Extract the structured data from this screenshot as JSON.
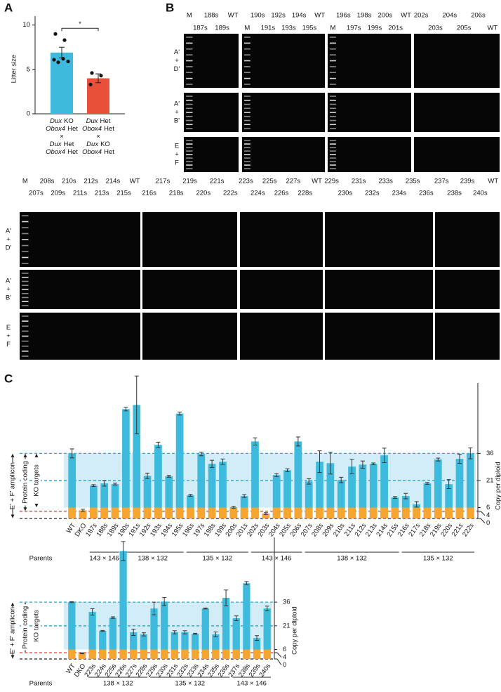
{
  "panel_labels": [
    "A",
    "B",
    "C"
  ],
  "chart_data": [
    {
      "type": "bar",
      "ylabel": "Litter size",
      "categories": [
        [
          [
            "Dux",
            "KO"
          ],
          [
            "Obox4",
            "Het"
          ],
          [
            "×"
          ],
          [
            "Dux",
            "Het"
          ],
          [
            "Obox4",
            "Het"
          ]
        ],
        [
          [
            "Dux",
            "Het"
          ],
          [
            "Obox4",
            "Het"
          ],
          [
            "×"
          ],
          [
            "Dux",
            "KO"
          ],
          [
            "Obox4",
            "Het"
          ]
        ]
      ],
      "values": [
        6.9,
        4.0
      ],
      "errors": [
        0.6,
        0.5
      ],
      "points": [
        [
          9.0,
          8.3,
          6.1,
          5.8,
          6.2,
          5.9
        ],
        [
          4.6,
          4.3,
          3.3
        ]
      ],
      "colors": [
        "#3ebbdc",
        "#e8503a"
      ],
      "ylim": [
        0,
        11
      ],
      "yticks": [
        0,
        5,
        10
      ],
      "significance": "*"
    },
    {
      "type": "bar",
      "ylabel": "Copy per diploid",
      "y_axis_side": "right",
      "annotations": [
        "E' + F' amplicon",
        "Protein coding",
        "KO targets"
      ],
      "parents_label": "Parents",
      "color": "#3ebbdc",
      "controls": {
        "categories": [
          "WT",
          "DKO"
        ],
        "values": [
          36,
          4.5
        ],
        "errors": [
          2.5,
          0.6
        ]
      },
      "groups": [
        {
          "parents": "143 × 146",
          "categories": [
            "187s",
            "188s",
            "189s"
          ],
          "values": [
            18.2,
            19.4,
            19.0
          ],
          "errors": [
            0.5,
            1.5,
            0.5
          ]
        },
        {
          "parents": "138 × 132",
          "categories": [
            "190s",
            "191s",
            "192s",
            "193s",
            "194s",
            "195s"
          ],
          "values": [
            60.5,
            62.8,
            23.6,
            40.7,
            23.3,
            58.0
          ],
          "errors": [
            1.0,
            16.0,
            1.5,
            1.5,
            0.5,
            0.8
          ]
        },
        {
          "parents": "135 × 132",
          "categories": [
            "196s",
            "197s",
            "198s",
            "199s",
            "200s",
            "201s"
          ],
          "values": [
            12.8,
            35.7,
            30.2,
            31.4,
            6.2,
            12.4
          ],
          "errors": [
            0.5,
            1.0,
            2.0,
            1.5,
            0.5,
            0.8
          ]
        },
        {
          "parents": "143 × 146",
          "categories": [
            "202s",
            "203s",
            "204s",
            "205s",
            "206s"
          ],
          "values": [
            42.6,
            2.7,
            24.0,
            26.7,
            42.6
          ],
          "errors": [
            2.0,
            0.5,
            0.8,
            0.8,
            2.5
          ]
        },
        {
          "parents": "138 × 132",
          "categories": [
            "207s",
            "208s",
            "209s",
            "210s",
            "211s",
            "212s",
            "213s",
            "214s",
            "215s"
          ],
          "values": [
            20.5,
            31.4,
            30.6,
            21.3,
            28.7,
            29.8,
            30.2,
            34.9,
            11.6
          ],
          "errors": [
            1.5,
            6.0,
            6.0,
            1.5,
            4.0,
            2.0,
            0.5,
            4.0,
            0.5
          ]
        },
        {
          "parents": "135 × 132",
          "categories": [
            "216s",
            "217s",
            "218s",
            "219s",
            "220s",
            "221s",
            "222s"
          ],
          "values": [
            12.4,
            7.8,
            19.4,
            32.6,
            19.0,
            33.0,
            36.0
          ],
          "errors": [
            1.5,
            1.5,
            0.5,
            0.8,
            2.5,
            2.5,
            3.0
          ]
        }
      ],
      "ylim": [
        0,
        75
      ],
      "yticks": [
        0,
        4,
        6,
        21,
        36
      ],
      "orange_band": {
        "range": [
          0,
          6
        ],
        "color": "#f7a531"
      },
      "shaded_band": {
        "range": [
          6,
          36
        ],
        "color": "#d3edf8"
      },
      "dashed_lines": [
        {
          "value": 36,
          "color": "#27a6d4"
        },
        {
          "value": 21,
          "color": "#27a6d4"
        },
        {
          "value": 4,
          "color": "#e0443a"
        },
        {
          "value": 0,
          "color": "#222222"
        }
      ]
    },
    {
      "type": "bar",
      "ylabel": "Copy per diploid",
      "y_axis_side": "right",
      "annotations": [
        "E' + F' amplicon",
        "Protein coding",
        "KO targets"
      ],
      "parents_label": "Parents",
      "color": "#3ebbdc",
      "controls": {
        "categories": [
          "WT",
          "DKO"
        ],
        "values": [
          36,
          3.6
        ],
        "errors": [
          0.3,
          0.3
        ]
      },
      "groups": [
        {
          "parents": "138 × 132",
          "categories": [
            "223s",
            "224s",
            "225s",
            "226s",
            "227s",
            "228s"
          ],
          "values": [
            29.8,
            17.8,
            26.2,
            68.4,
            16.9,
            15.6
          ],
          "errors": [
            2.0,
            0.3,
            0.5,
            6.0,
            2.0,
            1.0
          ]
        },
        {
          "parents": "135 × 132",
          "categories": [
            "229s",
            "230s",
            "231s",
            "232s",
            "233s",
            "234s",
            "235s",
            "236s"
          ],
          "values": [
            32.0,
            36.4,
            16.9,
            16.9,
            16.0,
            32.0,
            15.6,
            38.7
          ],
          "errors": [
            4.0,
            2.5,
            1.0,
            1.0,
            0.3,
            0.3,
            1.5,
            5.0
          ]
        },
        {
          "parents": "143 × 146",
          "categories": [
            "237s",
            "238s",
            "239s",
            "240s"
          ],
          "values": [
            25.8,
            48.0,
            13.3,
            32.0
          ],
          "errors": [
            1.5,
            1.0,
            1.5,
            1.5
          ]
        }
      ],
      "ylim": [
        0,
        77
      ],
      "yticks": [
        0,
        4,
        6,
        21,
        36
      ],
      "orange_band": {
        "range": [
          0,
          6
        ],
        "color": "#f7a531"
      },
      "shaded_band": {
        "range": [
          6,
          36
        ],
        "color": "#d3edf8"
      },
      "dashed_lines": [
        {
          "value": 36,
          "color": "#27a6d4"
        },
        {
          "value": 21,
          "color": "#27a6d4"
        },
        {
          "value": 4,
          "color": "#e0443a"
        },
        {
          "value": 0,
          "color": "#222222"
        }
      ]
    }
  ],
  "gels": {
    "top": {
      "row_labels": [
        [
          "A'",
          "+",
          "D'"
        ],
        [
          "A'",
          "+",
          "B'"
        ],
        [
          "E",
          "+",
          "F"
        ]
      ],
      "gels": [
        {
          "lanes": [
            "M",
            "187s",
            "188s",
            "189s",
            "WT"
          ],
          "first_row": "top"
        },
        {
          "lanes": [
            "M",
            "190s",
            "191s",
            "192s",
            "193s",
            "194s",
            "195s",
            "WT"
          ],
          "first_row": "bottom"
        },
        {
          "lanes": [
            "M",
            "196s",
            "197s",
            "198s",
            "199s",
            "200s",
            "201s",
            "WT"
          ],
          "first_row": "bottom"
        },
        {
          "lanes": [
            "202s",
            "203s",
            "204s",
            "205s",
            "206s",
            "WT"
          ],
          "first_row": "top"
        }
      ]
    },
    "bottom": {
      "row_labels": [
        [
          "A'",
          "+",
          "D'"
        ],
        [
          "A'",
          "+",
          "B'"
        ],
        [
          "E",
          "+",
          "F"
        ]
      ],
      "gels": [
        {
          "lanes": [
            "M",
            "207s",
            "208s",
            "209s",
            "210s",
            "211s",
            "212s",
            "213s",
            "214s",
            "215s",
            "WT"
          ],
          "first_row": "top"
        },
        {
          "lanes": [
            "216s",
            "217s",
            "218s",
            "219s",
            "220s",
            "221s",
            "222s"
          ],
          "first_row": "bottom"
        },
        {
          "lanes": [
            "223s",
            "224s",
            "225s",
            "226s",
            "227s",
            "228s",
            "WT"
          ],
          "first_row": "top"
        },
        {
          "lanes": [
            "229s",
            "230s",
            "231s",
            "232s",
            "233s",
            "234s",
            "235s",
            "236s"
          ],
          "first_row": "top"
        },
        {
          "lanes": [
            "237s",
            "238s",
            "239s",
            "240s",
            "WT"
          ],
          "first_row": "top"
        }
      ]
    }
  }
}
